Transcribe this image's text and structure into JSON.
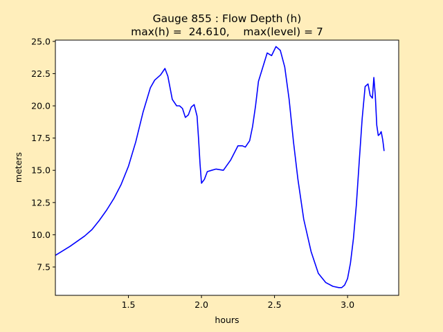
{
  "chart_data": {
    "type": "line",
    "title": "Gauge 855 : Flow Depth (h)",
    "subtitle": "max(h) =  24.610,    max(level) = 7",
    "xlabel": "hours",
    "ylabel": "meters",
    "xlim": [
      1.0,
      3.35
    ],
    "ylim": [
      5.3,
      25.1
    ],
    "x_ticks": [
      1.5,
      2.0,
      2.5,
      3.0
    ],
    "x_tick_labels": [
      "1.5",
      "2.0",
      "2.5",
      "3.0"
    ],
    "y_ticks": [
      7.5,
      10.0,
      12.5,
      15.0,
      17.5,
      20.0,
      22.5,
      25.0
    ],
    "y_tick_labels": [
      "7.5",
      "10.0",
      "12.5",
      "15.0",
      "17.5",
      "20.0",
      "22.5",
      "25.0"
    ],
    "grid": false,
    "series": [
      {
        "color": "#0000ff",
        "x": [
          1.0,
          1.1,
          1.2,
          1.25,
          1.3,
          1.35,
          1.4,
          1.45,
          1.5,
          1.55,
          1.6,
          1.65,
          1.68,
          1.72,
          1.75,
          1.77,
          1.8,
          1.83,
          1.85,
          1.87,
          1.89,
          1.91,
          1.93,
          1.95,
          1.97,
          1.98,
          1.99,
          2.0,
          2.02,
          2.04,
          2.07,
          2.1,
          2.15,
          2.2,
          2.25,
          2.28,
          2.3,
          2.33,
          2.35,
          2.37,
          2.39,
          2.42,
          2.45,
          2.48,
          2.51,
          2.54,
          2.57,
          2.6,
          2.63,
          2.66,
          2.7,
          2.75,
          2.8,
          2.85,
          2.9,
          2.94,
          2.96,
          2.98,
          3.0,
          3.02,
          3.04,
          3.06,
          3.08,
          3.1,
          3.12,
          3.14,
          3.155,
          3.17,
          3.18,
          3.19,
          3.2,
          3.21,
          3.22,
          3.23,
          3.24,
          3.245,
          3.25
        ],
        "y": [
          8.4,
          9.1,
          9.9,
          10.4,
          11.1,
          11.9,
          12.8,
          13.9,
          15.3,
          17.2,
          19.5,
          21.4,
          22.0,
          22.4,
          22.9,
          22.3,
          20.5,
          20.0,
          20.0,
          19.8,
          19.1,
          19.3,
          19.9,
          20.1,
          19.2,
          17.5,
          15.5,
          14.0,
          14.3,
          14.9,
          15.0,
          15.1,
          15.0,
          15.8,
          16.9,
          16.9,
          16.8,
          17.3,
          18.4,
          20.0,
          21.9,
          23.0,
          24.1,
          23.9,
          24.6,
          24.3,
          23.0,
          20.5,
          17.2,
          14.3,
          11.2,
          8.7,
          7.0,
          6.3,
          6.0,
          5.9,
          5.9,
          6.1,
          6.6,
          7.8,
          9.7,
          12.3,
          15.7,
          19.0,
          21.5,
          21.7,
          20.8,
          20.6,
          22.2,
          20.8,
          18.5,
          17.7,
          17.8,
          18.0,
          17.4,
          17.0,
          16.5
        ]
      }
    ]
  }
}
